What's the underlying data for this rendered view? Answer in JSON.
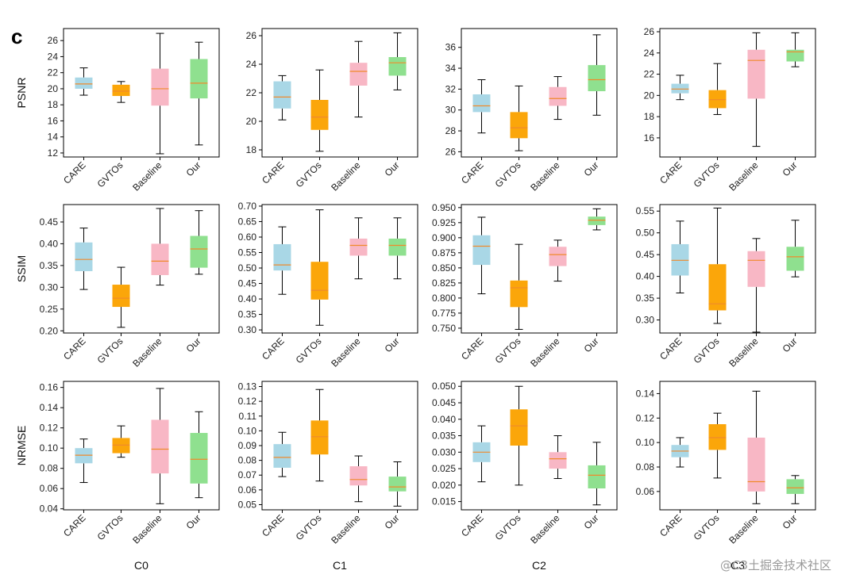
{
  "figure": {
    "panel_label": "c",
    "watermark": "@C3土掘金技术社区"
  },
  "colors": {
    "CARE": "#a9d7e6",
    "GVTOs": "#fba60a",
    "Baseline": "#f8b7c5",
    "Our": "#8fe08f",
    "median": "#f08a2c",
    "whisker": "#000000",
    "axis": "#000000"
  },
  "chart_data": [
    {
      "type": "box",
      "metric": "PSNR",
      "condition": "C0",
      "ylabel": "PSNR",
      "xlabel": "",
      "ylim": [
        11.5,
        27.5
      ],
      "yticks": [
        12,
        14,
        16,
        18,
        20,
        22,
        24,
        26
      ],
      "ytick_labels": [
        "12",
        "14",
        "16",
        "18",
        "20",
        "22",
        "24",
        "26"
      ],
      "categories": [
        "CARE",
        "GVTOs",
        "Baseline",
        "Our"
      ],
      "boxes": [
        {
          "name": "CARE",
          "min": 19.2,
          "q1": 20.0,
          "median": 20.6,
          "q3": 21.4,
          "max": 22.6
        },
        {
          "name": "GVTOs",
          "min": 18.3,
          "q1": 19.1,
          "median": 19.7,
          "q3": 20.5,
          "max": 20.9
        },
        {
          "name": "Baseline",
          "min": 11.9,
          "q1": 17.9,
          "median": 20.0,
          "q3": 22.5,
          "max": 26.9
        },
        {
          "name": "Our",
          "min": 13.0,
          "q1": 18.8,
          "median": 20.7,
          "q3": 23.7,
          "max": 25.8
        }
      ]
    },
    {
      "type": "box",
      "metric": "PSNR",
      "condition": "C1",
      "ylabel": "",
      "xlabel": "",
      "ylim": [
        17.5,
        26.5
      ],
      "yticks": [
        18,
        20,
        22,
        24,
        26
      ],
      "ytick_labels": [
        "18",
        "20",
        "22",
        "24",
        "26"
      ],
      "categories": [
        "CARE",
        "GVTOs",
        "Baseline",
        "Our"
      ],
      "boxes": [
        {
          "name": "CARE",
          "min": 20.1,
          "q1": 20.9,
          "median": 21.7,
          "q3": 22.8,
          "max": 23.2
        },
        {
          "name": "GVTOs",
          "min": 17.9,
          "q1": 19.4,
          "median": 20.3,
          "q3": 21.5,
          "max": 23.6
        },
        {
          "name": "Baseline",
          "min": 20.3,
          "q1": 22.5,
          "median": 23.5,
          "q3": 24.1,
          "max": 25.6
        },
        {
          "name": "Our",
          "min": 22.2,
          "q1": 23.2,
          "median": 24.1,
          "q3": 24.5,
          "max": 26.2
        }
      ]
    },
    {
      "type": "box",
      "metric": "PSNR",
      "condition": "C2",
      "ylabel": "",
      "xlabel": "",
      "ylim": [
        25.5,
        37.8
      ],
      "yticks": [
        26,
        28,
        30,
        32,
        34,
        36
      ],
      "ytick_labels": [
        "26",
        "28",
        "30",
        "32",
        "34",
        "36"
      ],
      "categories": [
        "CARE",
        "GVTOs",
        "Baseline",
        "Our"
      ],
      "boxes": [
        {
          "name": "CARE",
          "min": 27.8,
          "q1": 29.8,
          "median": 30.4,
          "q3": 31.5,
          "max": 32.9
        },
        {
          "name": "GVTOs",
          "min": 26.1,
          "q1": 27.3,
          "median": 28.3,
          "q3": 29.8,
          "max": 32.3
        },
        {
          "name": "Baseline",
          "min": 29.1,
          "q1": 30.4,
          "median": 31.1,
          "q3": 32.2,
          "max": 33.2
        },
        {
          "name": "Our",
          "min": 29.5,
          "q1": 31.8,
          "median": 32.9,
          "q3": 34.3,
          "max": 37.2
        }
      ]
    },
    {
      "type": "box",
      "metric": "PSNR",
      "condition": "C3",
      "ylabel": "",
      "xlabel": "",
      "ylim": [
        14.2,
        26.3
      ],
      "yticks": [
        16,
        18,
        20,
        22,
        24,
        26
      ],
      "ytick_labels": [
        "16",
        "18",
        "20",
        "22",
        "24",
        "26"
      ],
      "categories": [
        "CARE",
        "GVTOs",
        "Baseline",
        "Our"
      ],
      "boxes": [
        {
          "name": "CARE",
          "min": 19.6,
          "q1": 20.2,
          "median": 20.6,
          "q3": 21.1,
          "max": 21.9
        },
        {
          "name": "GVTOs",
          "min": 18.2,
          "q1": 18.8,
          "median": 19.6,
          "q3": 20.5,
          "max": 23.0
        },
        {
          "name": "Baseline",
          "min": 15.2,
          "q1": 19.7,
          "median": 23.3,
          "q3": 24.3,
          "max": 25.9
        },
        {
          "name": "Our",
          "min": 22.7,
          "q1": 23.2,
          "median": 24.1,
          "q3": 24.3,
          "max": 25.9
        }
      ]
    },
    {
      "type": "box",
      "metric": "SSIM",
      "condition": "C0",
      "ylabel": "SSIM",
      "xlabel": "",
      "ylim": [
        0.195,
        0.49
      ],
      "yticks": [
        0.2,
        0.25,
        0.3,
        0.35,
        0.4,
        0.45
      ],
      "ytick_labels": [
        "0.20",
        "0.25",
        "0.30",
        "0.35",
        "0.40",
        "0.45"
      ],
      "categories": [
        "CARE",
        "GVTOs",
        "Baseline",
        "Our"
      ],
      "boxes": [
        {
          "name": "CARE",
          "min": 0.295,
          "q1": 0.337,
          "median": 0.364,
          "q3": 0.403,
          "max": 0.436
        },
        {
          "name": "GVTOs",
          "min": 0.208,
          "q1": 0.255,
          "median": 0.275,
          "q3": 0.306,
          "max": 0.346
        },
        {
          "name": "Baseline",
          "min": 0.305,
          "q1": 0.328,
          "median": 0.36,
          "q3": 0.4,
          "max": 0.481
        },
        {
          "name": "Our",
          "min": 0.33,
          "q1": 0.345,
          "median": 0.388,
          "q3": 0.418,
          "max": 0.476
        }
      ]
    },
    {
      "type": "box",
      "metric": "SSIM",
      "condition": "C1",
      "ylabel": "",
      "xlabel": "",
      "ylim": [
        0.29,
        0.705
      ],
      "yticks": [
        0.3,
        0.35,
        0.4,
        0.45,
        0.5,
        0.55,
        0.6,
        0.65,
        0.7
      ],
      "ytick_labels": [
        "0.30",
        "0.35",
        "0.40",
        "0.45",
        "0.50",
        "0.55",
        "0.60",
        "0.65",
        "0.70"
      ],
      "categories": [
        "CARE",
        "GVTOs",
        "Baseline",
        "Our"
      ],
      "boxes": [
        {
          "name": "CARE",
          "min": 0.415,
          "q1": 0.492,
          "median": 0.51,
          "q3": 0.577,
          "max": 0.633
        },
        {
          "name": "GVTOs",
          "min": 0.315,
          "q1": 0.398,
          "median": 0.428,
          "q3": 0.52,
          "max": 0.688
        },
        {
          "name": "Baseline",
          "min": 0.465,
          "q1": 0.54,
          "median": 0.573,
          "q3": 0.595,
          "max": 0.662
        },
        {
          "name": "Our",
          "min": 0.465,
          "q1": 0.54,
          "median": 0.573,
          "q3": 0.595,
          "max": 0.662
        }
      ]
    },
    {
      "type": "box",
      "metric": "SSIM",
      "condition": "C2",
      "ylabel": "",
      "xlabel": "",
      "ylim": [
        0.742,
        0.955
      ],
      "yticks": [
        0.75,
        0.775,
        0.8,
        0.825,
        0.85,
        0.875,
        0.9,
        0.925,
        0.95
      ],
      "ytick_labels": [
        "0.750",
        "0.775",
        "0.800",
        "0.825",
        "0.850",
        "0.875",
        "0.900",
        "0.925",
        "0.950"
      ],
      "categories": [
        "CARE",
        "GVTOs",
        "Baseline",
        "Our"
      ],
      "boxes": [
        {
          "name": "CARE",
          "min": 0.807,
          "q1": 0.855,
          "median": 0.886,
          "q3": 0.904,
          "max": 0.934
        },
        {
          "name": "GVTOs",
          "min": 0.748,
          "q1": 0.785,
          "median": 0.817,
          "q3": 0.829,
          "max": 0.889
        },
        {
          "name": "Baseline",
          "min": 0.828,
          "q1": 0.853,
          "median": 0.872,
          "q3": 0.885,
          "max": 0.896
        },
        {
          "name": "Our",
          "min": 0.913,
          "q1": 0.921,
          "median": 0.929,
          "q3": 0.935,
          "max": 0.948
        }
      ]
    },
    {
      "type": "box",
      "metric": "SSIM",
      "condition": "C3",
      "ylabel": "",
      "xlabel": "",
      "ylim": [
        0.27,
        0.565
      ],
      "yticks": [
        0.3,
        0.35,
        0.4,
        0.45,
        0.5,
        0.55
      ],
      "ytick_labels": [
        "0.30",
        "0.35",
        "0.40",
        "0.45",
        "0.50",
        "0.55"
      ],
      "categories": [
        "CARE",
        "GVTOs",
        "Baseline",
        "Our"
      ],
      "boxes": [
        {
          "name": "CARE",
          "min": 0.362,
          "q1": 0.402,
          "median": 0.437,
          "q3": 0.474,
          "max": 0.527
        },
        {
          "name": "GVTOs",
          "min": 0.292,
          "q1": 0.322,
          "median": 0.337,
          "q3": 0.428,
          "max": 0.557
        },
        {
          "name": "Baseline",
          "min": 0.272,
          "q1": 0.376,
          "median": 0.437,
          "q3": 0.458,
          "max": 0.487
        },
        {
          "name": "Our",
          "min": 0.399,
          "q1": 0.413,
          "median": 0.445,
          "q3": 0.468,
          "max": 0.529
        }
      ]
    },
    {
      "type": "box",
      "metric": "NRMSE",
      "condition": "C0",
      "ylabel": "NRMSE",
      "xlabel": "C0",
      "ylim": [
        0.039,
        0.166
      ],
      "yticks": [
        0.04,
        0.06,
        0.08,
        0.1,
        0.12,
        0.14,
        0.16
      ],
      "ytick_labels": [
        "0.04",
        "0.06",
        "0.08",
        "0.10",
        "0.12",
        "0.14",
        "0.16"
      ],
      "categories": [
        "CARE",
        "GVTOs",
        "Baseline",
        "Our"
      ],
      "boxes": [
        {
          "name": "CARE",
          "min": 0.066,
          "q1": 0.085,
          "median": 0.093,
          "q3": 0.1,
          "max": 0.109
        },
        {
          "name": "GVTOs",
          "min": 0.091,
          "q1": 0.095,
          "median": 0.103,
          "q3": 0.11,
          "max": 0.122
        },
        {
          "name": "Baseline",
          "min": 0.045,
          "q1": 0.075,
          "median": 0.099,
          "q3": 0.128,
          "max": 0.159
        },
        {
          "name": "Our",
          "min": 0.051,
          "q1": 0.065,
          "median": 0.089,
          "q3": 0.115,
          "max": 0.136
        }
      ]
    },
    {
      "type": "box",
      "metric": "NRMSE",
      "condition": "C1",
      "ylabel": "",
      "xlabel": "C1",
      "ylim": [
        0.0465,
        0.1335
      ],
      "yticks": [
        0.05,
        0.06,
        0.07,
        0.08,
        0.09,
        0.1,
        0.11,
        0.12,
        0.13
      ],
      "ytick_labels": [
        "0.05",
        "0.06",
        "0.07",
        "0.08",
        "0.09",
        "0.10",
        "0.11",
        "0.12",
        "0.13"
      ],
      "categories": [
        "CARE",
        "GVTOs",
        "Baseline",
        "Our"
      ],
      "boxes": [
        {
          "name": "CARE",
          "min": 0.069,
          "q1": 0.075,
          "median": 0.082,
          "q3": 0.091,
          "max": 0.099
        },
        {
          "name": "GVTOs",
          "min": 0.066,
          "q1": 0.084,
          "median": 0.096,
          "q3": 0.107,
          "max": 0.128
        },
        {
          "name": "Baseline",
          "min": 0.052,
          "q1": 0.063,
          "median": 0.067,
          "q3": 0.076,
          "max": 0.083
        },
        {
          "name": "Our",
          "min": 0.049,
          "q1": 0.059,
          "median": 0.062,
          "q3": 0.069,
          "max": 0.079
        }
      ]
    },
    {
      "type": "box",
      "metric": "NRMSE",
      "condition": "C2",
      "ylabel": "",
      "xlabel": "C2",
      "ylim": [
        0.0125,
        0.0515
      ],
      "yticks": [
        0.015,
        0.02,
        0.025,
        0.03,
        0.035,
        0.04,
        0.045,
        0.05
      ],
      "ytick_labels": [
        "0.015",
        "0.020",
        "0.025",
        "0.030",
        "0.035",
        "0.040",
        "0.045",
        "0.050"
      ],
      "categories": [
        "CARE",
        "GVTOs",
        "Baseline",
        "Our"
      ],
      "boxes": [
        {
          "name": "CARE",
          "min": 0.021,
          "q1": 0.027,
          "median": 0.03,
          "q3": 0.033,
          "max": 0.038
        },
        {
          "name": "GVTOs",
          "min": 0.02,
          "q1": 0.032,
          "median": 0.038,
          "q3": 0.043,
          "max": 0.05
        },
        {
          "name": "Baseline",
          "min": 0.022,
          "q1": 0.025,
          "median": 0.028,
          "q3": 0.03,
          "max": 0.035
        },
        {
          "name": "Our",
          "min": 0.014,
          "q1": 0.019,
          "median": 0.023,
          "q3": 0.026,
          "max": 0.033
        }
      ]
    },
    {
      "type": "box",
      "metric": "NRMSE",
      "condition": "C3",
      "ylabel": "",
      "xlabel": "C3",
      "ylim": [
        0.045,
        0.15
      ],
      "yticks": [
        0.06,
        0.08,
        0.1,
        0.12,
        0.14
      ],
      "ytick_labels": [
        "0.06",
        "0.08",
        "0.10",
        "0.12",
        "0.14"
      ],
      "categories": [
        "CARE",
        "GVTOs",
        "Baseline",
        "Our"
      ],
      "boxes": [
        {
          "name": "CARE",
          "min": 0.08,
          "q1": 0.088,
          "median": 0.093,
          "q3": 0.098,
          "max": 0.104
        },
        {
          "name": "GVTOs",
          "min": 0.071,
          "q1": 0.094,
          "median": 0.104,
          "q3": 0.115,
          "max": 0.124
        },
        {
          "name": "Baseline",
          "min": 0.05,
          "q1": 0.06,
          "median": 0.068,
          "q3": 0.104,
          "max": 0.142
        },
        {
          "name": "Our",
          "min": 0.05,
          "q1": 0.058,
          "median": 0.063,
          "q3": 0.07,
          "max": 0.073
        }
      ]
    }
  ]
}
